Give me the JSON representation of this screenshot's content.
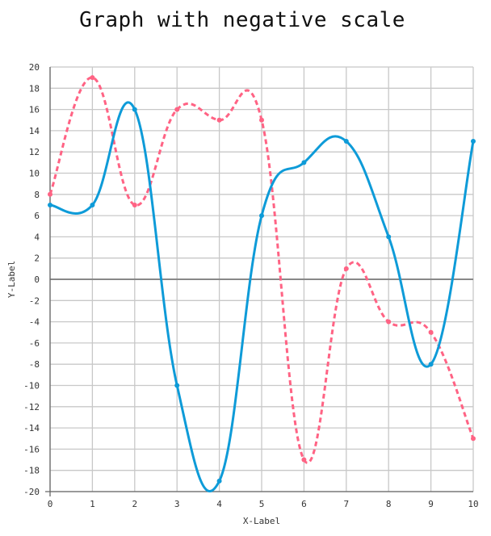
{
  "chart_data": {
    "type": "line",
    "title": "Graph with negative scale",
    "xlabel": "X-Label",
    "ylabel": "Y-Label",
    "xlim": [
      0,
      10
    ],
    "ylim": [
      -20,
      20
    ],
    "x_ticks": [
      0,
      1,
      2,
      3,
      4,
      5,
      6,
      7,
      8,
      9,
      10
    ],
    "y_ticks": [
      -20,
      -18,
      -16,
      -14,
      -12,
      -10,
      -8,
      -6,
      -4,
      -2,
      0,
      2,
      4,
      6,
      8,
      10,
      12,
      14,
      16,
      18,
      20
    ],
    "grid": true,
    "legend": "none",
    "x": [
      0,
      1,
      2,
      3,
      4,
      5,
      6,
      7,
      8,
      9,
      10
    ],
    "series": [
      {
        "values": [
          8,
          19,
          7,
          16,
          15,
          15,
          -17,
          1,
          -4,
          -5,
          -15
        ],
        "color": "#ff6384",
        "style": "dashed"
      },
      {
        "values": [
          7,
          7,
          16,
          -10,
          -19,
          6,
          11,
          13,
          4,
          -8,
          13
        ],
        "color": "#0e9bd8",
        "style": "solid"
      }
    ]
  }
}
